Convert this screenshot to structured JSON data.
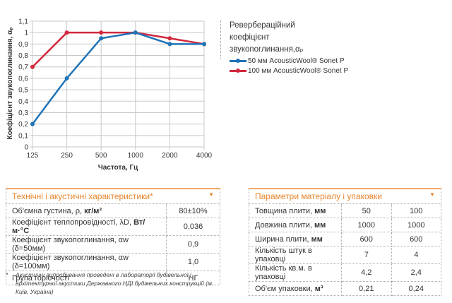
{
  "chart_data": {
    "type": "line",
    "title": "",
    "xlabel": "Частота, Гц",
    "ylabel": "Коефіцієнт звукопоглинання, αₚ",
    "categories": [
      "125",
      "250",
      "500",
      "1000",
      "2000",
      "4000"
    ],
    "ylim": [
      0,
      1.1
    ],
    "yticks": [
      "0",
      "0,1",
      "0,2",
      "0,3",
      "0,4",
      "0,5",
      "0,6",
      "0,7",
      "0,8",
      "0,9",
      "1",
      "1,1"
    ],
    "grid": true,
    "legend_position": "right",
    "series": [
      {
        "name": "50 мм AcousticWool® Sonet P",
        "color": "#1f73b7",
        "values": [
          0.2,
          0.6,
          0.95,
          1.0,
          0.9,
          0.9
        ]
      },
      {
        "name": "100 мм AcousticWool® Sonet P",
        "color": "#d12a3f",
        "values": [
          0.7,
          1.0,
          1.0,
          1.0,
          0.95,
          0.9
        ]
      }
    ]
  },
  "legend": {
    "title_line1": "Реверберацій­ний",
    "title_line2": "коефіцієнт",
    "title_line3": "звукопоглинання,αₚ",
    "items": [
      "50 мм AcousticWool® Sonet P",
      "100 мм AcousticWool®  Sonet P"
    ]
  },
  "tech_table": {
    "title": "Технічні і акустичні характеристики*",
    "rows": [
      {
        "label": "Об'ємна густина, ρ, ",
        "unit": "кг/м³",
        "value": "80±10%"
      },
      {
        "label": "Коефіцієнт теплопровідності, λD, ",
        "unit": "Вт/м·°С",
        "value": "0,036"
      },
      {
        "label": "Коефіцієнт звукопоглинання, αw (δ=50мм)",
        "unit": "",
        "value": "0,9"
      },
      {
        "label": "Коефіцієнт звукопоглинання, αw (δ=100мм)",
        "unit": "",
        "value": "1,0"
      },
      {
        "label": "Група горючості",
        "unit": "",
        "value": "НГ"
      }
    ]
  },
  "params_table": {
    "title": "Параметри матеріалу і упаковки",
    "rows": [
      {
        "label": "Товщина плити, ",
        "unit": "мм",
        "v1": "50",
        "v2": "100"
      },
      {
        "label": "Довжина плити, ",
        "unit": "мм",
        "v1": "1000",
        "v2": "1000"
      },
      {
        "label": "Ширина плити, ",
        "unit": "мм",
        "v1": "600",
        "v2": "600"
      },
      {
        "label": "Кількість штук в  упаковці",
        "unit": "",
        "v1": "7",
        "v2": "4"
      },
      {
        "label": "Кількість кв.м. в  упаковці",
        "unit": "",
        "v1": "4,2",
        "v2": "2,4"
      },
      {
        "label": "Об'єм упаковки, ",
        "unit": "м³",
        "v1": "0,21",
        "v2": "0,24"
      }
    ]
  },
  "footnote": {
    "star": "*",
    "text": "Акустичні випробування проведені в лабораторії будівельної і архітектурної акустики Державного НДІ будівельних конструкцій (м. Київ, Україна)"
  },
  "colors": {
    "accent": "#e8852b",
    "blue": "#1f73b7",
    "red": "#d12a3f"
  }
}
